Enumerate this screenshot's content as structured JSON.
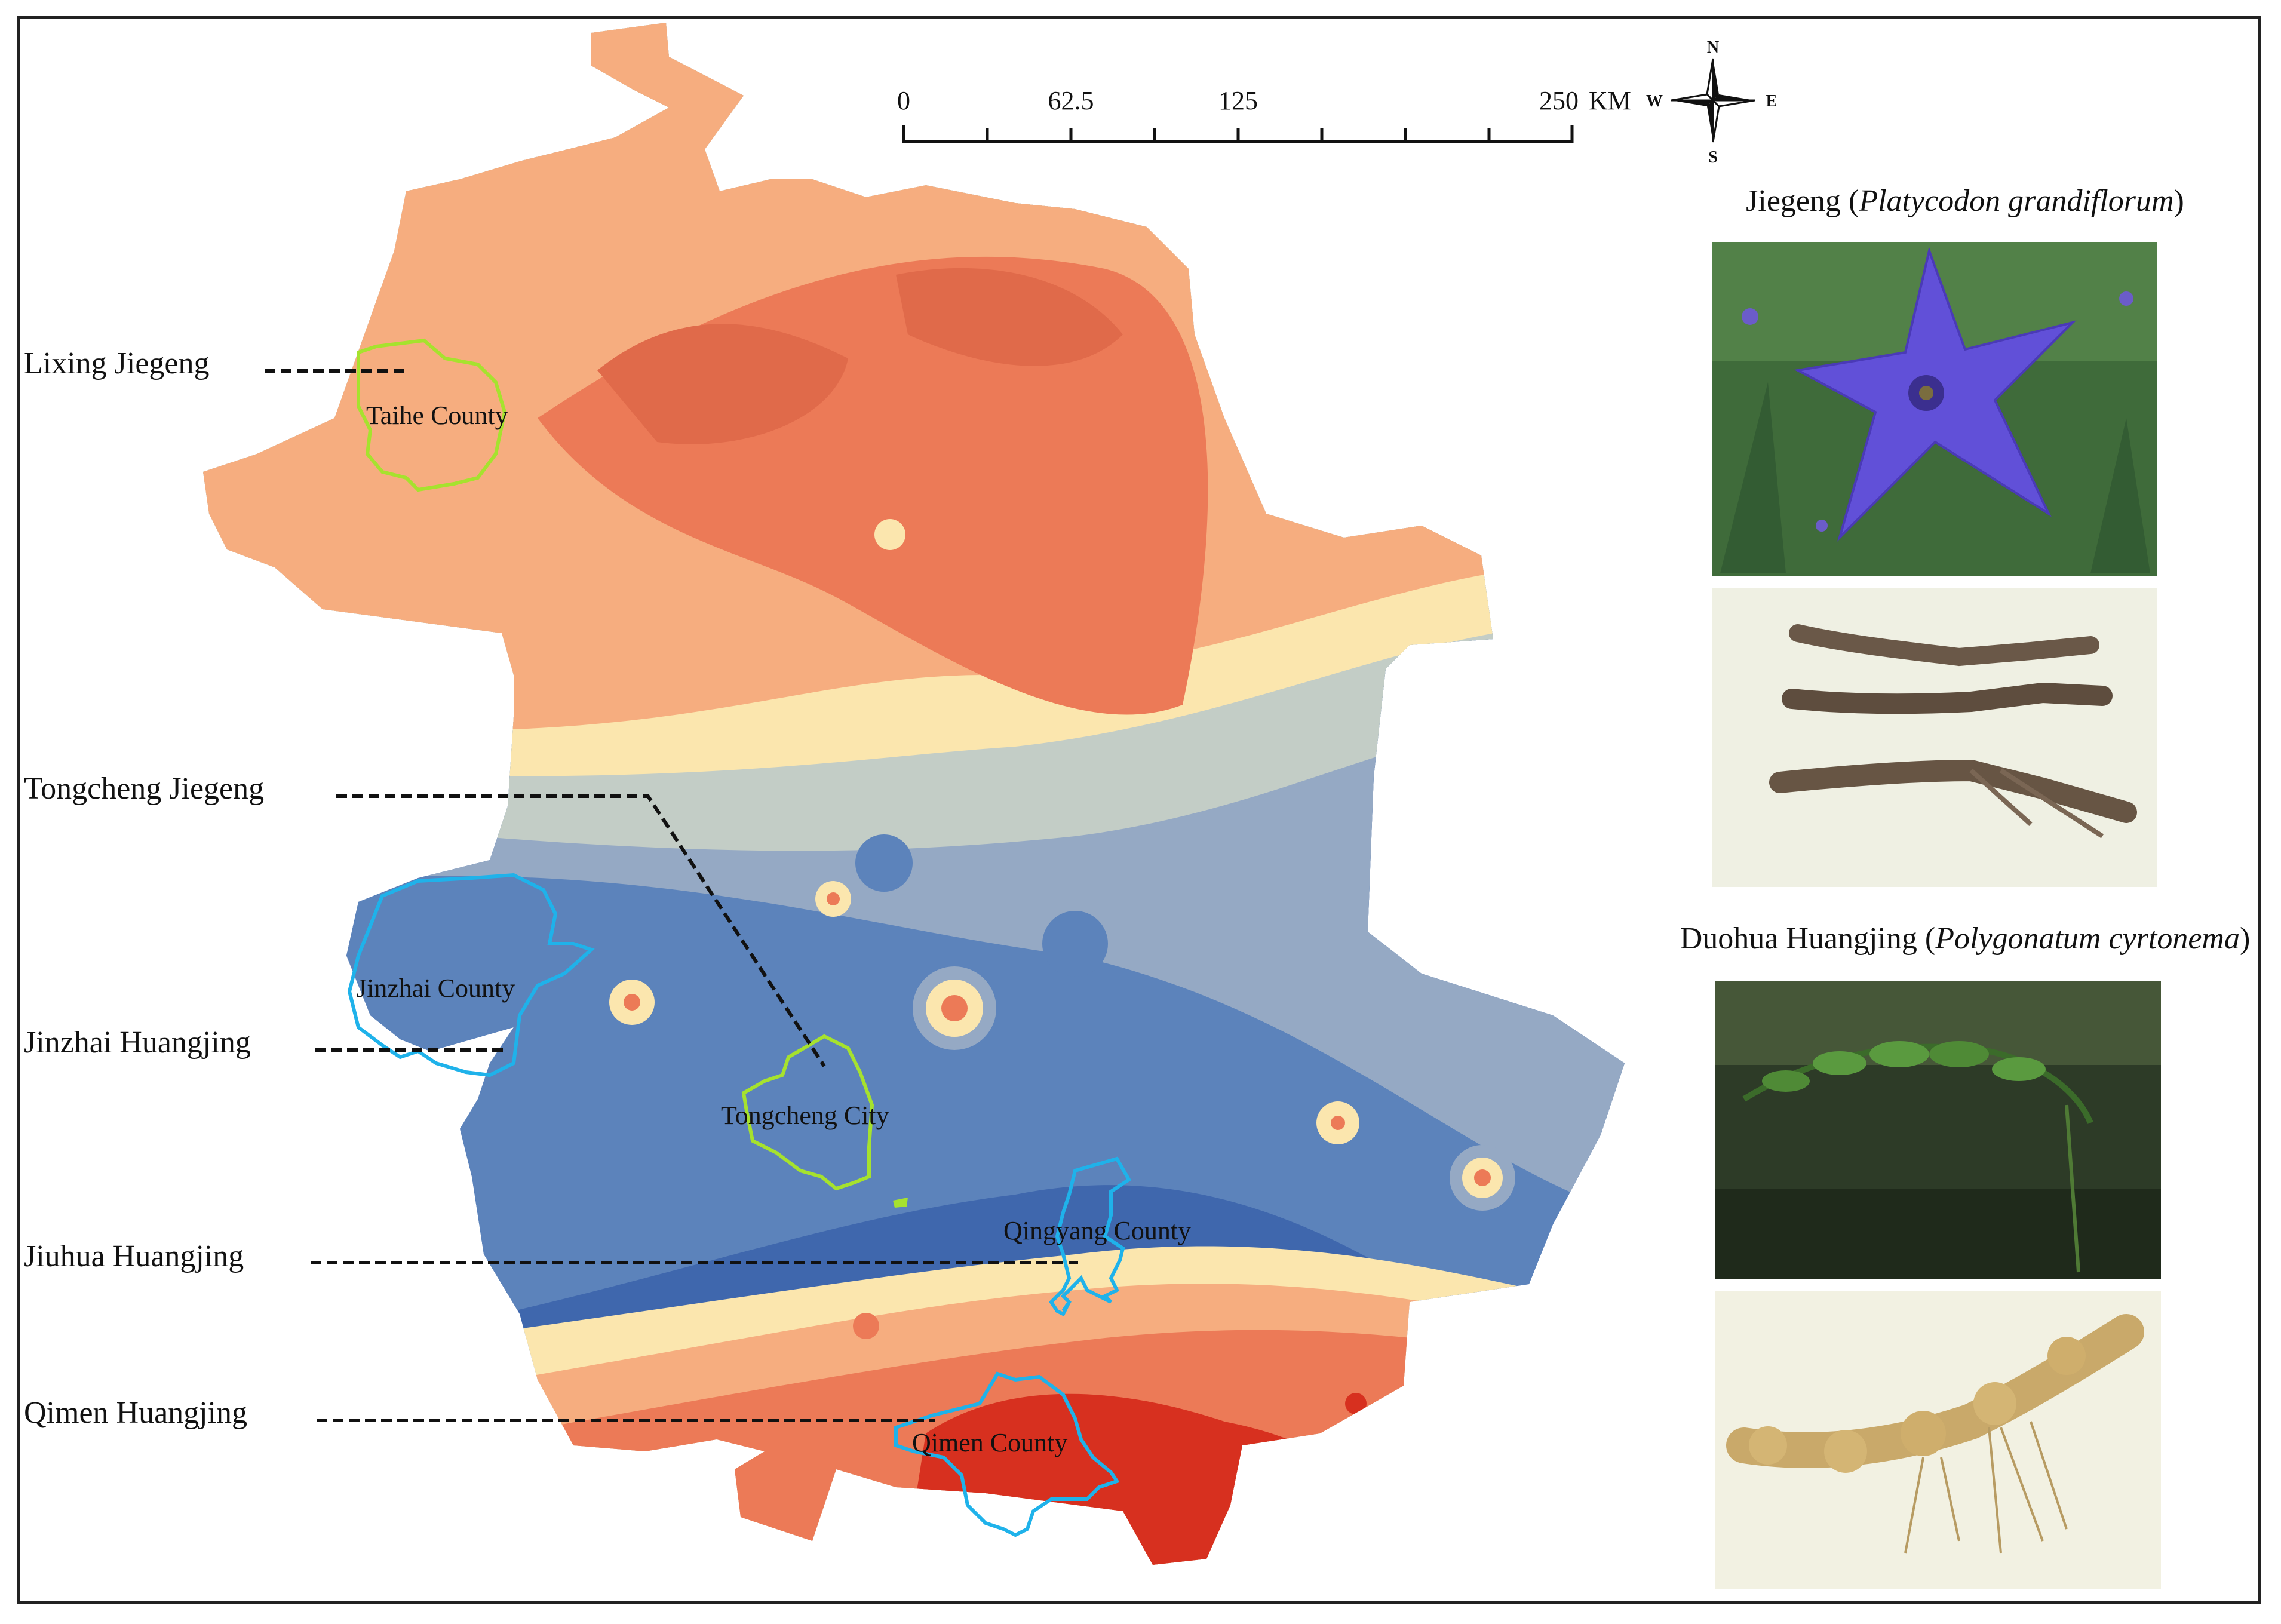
{
  "map": {
    "labels_left": {
      "lixing": "Lixing Jiegeng",
      "tongcheng": "Tongcheng Jiegeng",
      "jinzhai": "Jinzhai Huangjing",
      "jiuhua": "Jiuhua Huangjing",
      "qimen": "Qimen Huangjing"
    },
    "counties": {
      "taihe": "Taihe County",
      "jinzhai": "Jinzhai County",
      "tongcheng": "Tongcheng City",
      "qingyang": "Qingyang County",
      "qimen": "Qimen County"
    },
    "boundary_colors": {
      "jiegeng": "#a6e22e",
      "huangjing": "#1fb2ea"
    },
    "ramp_colors": [
      "#d7301f",
      "#ec7a57",
      "#f6ad7f",
      "#fbe6ae",
      "#c3cdc6",
      "#95a9c4",
      "#5c83bb",
      "#3f67ad"
    ],
    "scale_bar": {
      "ticks": [
        "0",
        "62.5",
        "125",
        "250"
      ],
      "unit": "KM"
    },
    "compass": {
      "n": "N",
      "s": "S",
      "e": "E",
      "w": "W"
    }
  },
  "panel": {
    "jiegeng": {
      "name": "Jiegeng (",
      "latin": "Platycodon grandiflorum",
      "close": ")"
    },
    "huangjing": {
      "name": "Duohua Huangjing (",
      "latin": "Polygonatum cyrtonema",
      "close": ")"
    },
    "photos": [
      "flower-photo",
      "root-photo",
      "plant-photo",
      "rhizome-photo"
    ]
  }
}
